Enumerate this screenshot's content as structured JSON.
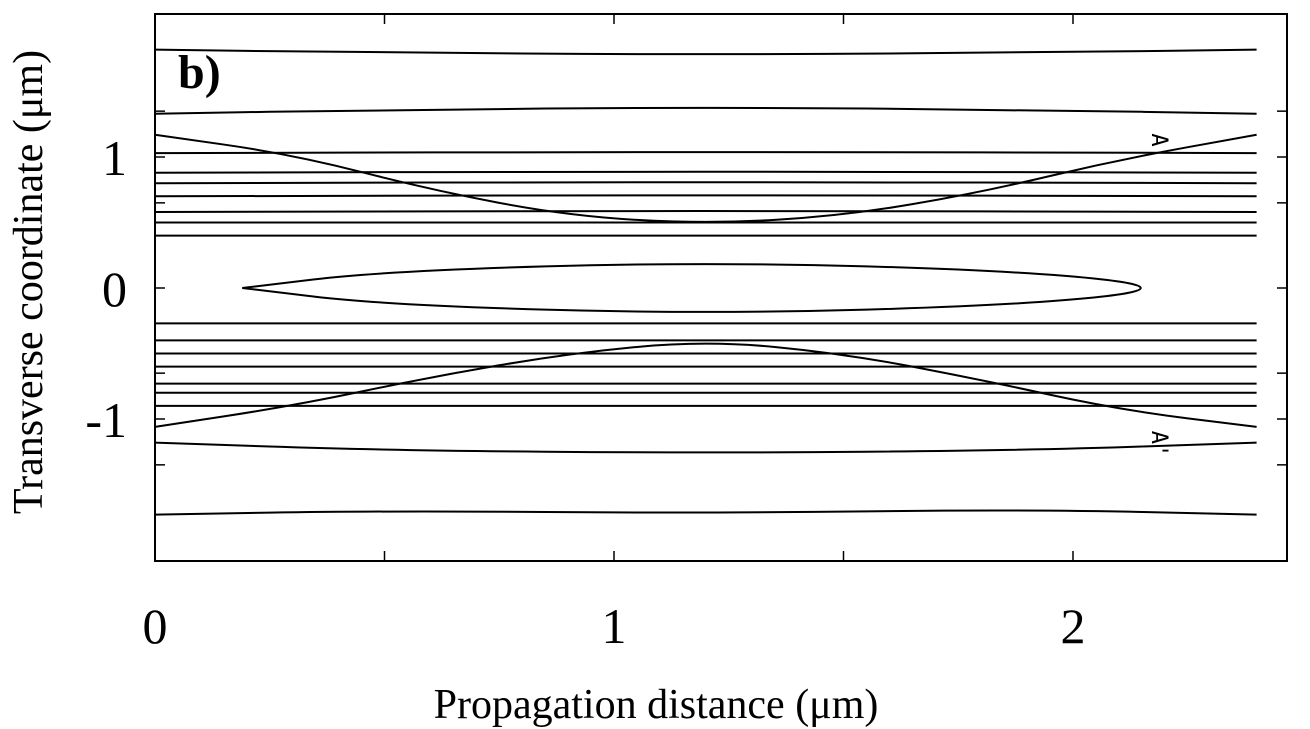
{
  "chart_data": {
    "type": "contour",
    "panel_label": "b)",
    "xlabel": "Propagation distance (μm)",
    "ylabel": "Transverse coordinate (μm)",
    "xlim": [
      0,
      2.4
    ],
    "ylim": [
      -1.85,
      1.9
    ],
    "xticks": [
      {
        "value": 0,
        "label": "0"
      },
      {
        "value": 1,
        "label": "1"
      },
      {
        "value": 2,
        "label": "2"
      }
    ],
    "xticks_minor": [
      0.5,
      1.5
    ],
    "yticks": [
      {
        "value": 1,
        "label": "1"
      },
      {
        "value": 0,
        "label": "0"
      },
      {
        "value": -1,
        "label": "-1"
      }
    ],
    "yticks_minor": [
      1.35,
      0.65,
      -0.65,
      -1.35
    ],
    "annotations": [
      {
        "text": "A",
        "x": 2.19,
        "y": 1.18
      },
      {
        "text": "A'",
        "x": 2.19,
        "y": -1.09
      }
    ],
    "curves": [
      {
        "name": "top-outer",
        "points": [
          [
            0,
            1.82
          ],
          [
            0.4,
            1.8
          ],
          [
            1.2,
            1.78
          ],
          [
            2.0,
            1.8
          ],
          [
            2.4,
            1.82
          ]
        ]
      },
      {
        "name": "upper-ridge",
        "points": [
          [
            0,
            1.33
          ],
          [
            0.5,
            1.36
          ],
          [
            1.2,
            1.38
          ],
          [
            1.9,
            1.36
          ],
          [
            2.4,
            1.33
          ]
        ]
      },
      {
        "name": "upper-diagonal",
        "points": [
          [
            0,
            1.17
          ],
          [
            0.3,
            1.02
          ],
          [
            0.6,
            0.75
          ],
          [
            0.9,
            0.55
          ],
          [
            1.2,
            0.49
          ],
          [
            1.5,
            0.55
          ],
          [
            1.8,
            0.73
          ],
          [
            2.1,
            0.98
          ],
          [
            2.4,
            1.17
          ]
        ]
      },
      {
        "name": "upper-flat-1",
        "points": [
          [
            0,
            1.03
          ],
          [
            1.2,
            1.04
          ],
          [
            2.4,
            1.03
          ]
        ]
      },
      {
        "name": "upper-flat-2",
        "points": [
          [
            0,
            0.88
          ],
          [
            1.2,
            0.89
          ],
          [
            2.4,
            0.88
          ]
        ]
      },
      {
        "name": "upper-flat-3",
        "points": [
          [
            0,
            0.8
          ],
          [
            1.2,
            0.81
          ],
          [
            2.4,
            0.8
          ]
        ]
      },
      {
        "name": "upper-flat-4",
        "points": [
          [
            0,
            0.7
          ],
          [
            1.2,
            0.71
          ],
          [
            2.4,
            0.7
          ]
        ]
      },
      {
        "name": "upper-flat-5",
        "points": [
          [
            0,
            0.58
          ],
          [
            1.2,
            0.59
          ],
          [
            2.4,
            0.58
          ]
        ]
      },
      {
        "name": "upper-flat-6",
        "points": [
          [
            0,
            0.5
          ],
          [
            1.2,
            0.5
          ],
          [
            2.4,
            0.5
          ]
        ]
      },
      {
        "name": "upper-flat-7",
        "points": [
          [
            0,
            0.4
          ],
          [
            1.2,
            0.4
          ],
          [
            2.4,
            0.4
          ]
        ]
      },
      {
        "name": "center-ellipse",
        "points": [
          [
            0.19,
            0
          ],
          [
            0.5,
            0.13
          ],
          [
            1.2,
            0.2
          ],
          [
            1.9,
            0.13
          ],
          [
            2.23,
            0
          ],
          [
            1.9,
            -0.13
          ],
          [
            1.2,
            -0.2
          ],
          [
            0.5,
            -0.13
          ],
          [
            0.19,
            0
          ]
        ]
      },
      {
        "name": "lower-flat-1",
        "points": [
          [
            0,
            -0.27
          ],
          [
            1.2,
            -0.27
          ],
          [
            2.4,
            -0.27
          ]
        ]
      },
      {
        "name": "lower-flat-2",
        "points": [
          [
            0,
            -0.4
          ],
          [
            1.2,
            -0.4
          ],
          [
            2.4,
            -0.4
          ]
        ]
      },
      {
        "name": "lower-flat-3",
        "points": [
          [
            0,
            -0.5
          ],
          [
            1.2,
            -0.5
          ],
          [
            2.4,
            -0.5
          ]
        ]
      },
      {
        "name": "lower-flat-4",
        "points": [
          [
            0,
            -0.6
          ],
          [
            1.2,
            -0.6
          ],
          [
            2.4,
            -0.6
          ]
        ]
      },
      {
        "name": "lower-flat-5",
        "points": [
          [
            0,
            -0.73
          ],
          [
            1.2,
            -0.73
          ],
          [
            2.4,
            -0.73
          ]
        ]
      },
      {
        "name": "lower-flat-6",
        "points": [
          [
            0,
            -0.8
          ],
          [
            1.2,
            -0.8
          ],
          [
            2.4,
            -0.8
          ]
        ]
      },
      {
        "name": "lower-flat-7",
        "points": [
          [
            0,
            -0.9
          ],
          [
            1.2,
            -0.9
          ],
          [
            2.4,
            -0.9
          ]
        ]
      },
      {
        "name": "lower-diagonal",
        "points": [
          [
            0,
            -1.06
          ],
          [
            0.3,
            -0.9
          ],
          [
            0.6,
            -0.68
          ],
          [
            0.9,
            -0.5
          ],
          [
            1.2,
            -0.4
          ],
          [
            1.5,
            -0.5
          ],
          [
            1.8,
            -0.7
          ],
          [
            2.1,
            -0.93
          ],
          [
            2.4,
            -1.06
          ]
        ]
      },
      {
        "name": "lower-ridge",
        "points": [
          [
            0,
            -1.18
          ],
          [
            0.5,
            -1.24
          ],
          [
            1.2,
            -1.26
          ],
          [
            1.9,
            -1.24
          ],
          [
            2.4,
            -1.18
          ]
        ]
      },
      {
        "name": "bottom-outer",
        "points": [
          [
            0,
            -1.73
          ],
          [
            0.5,
            -1.7
          ],
          [
            1.2,
            -1.72
          ],
          [
            1.9,
            -1.69
          ],
          [
            2.4,
            -1.73
          ]
        ]
      }
    ]
  }
}
